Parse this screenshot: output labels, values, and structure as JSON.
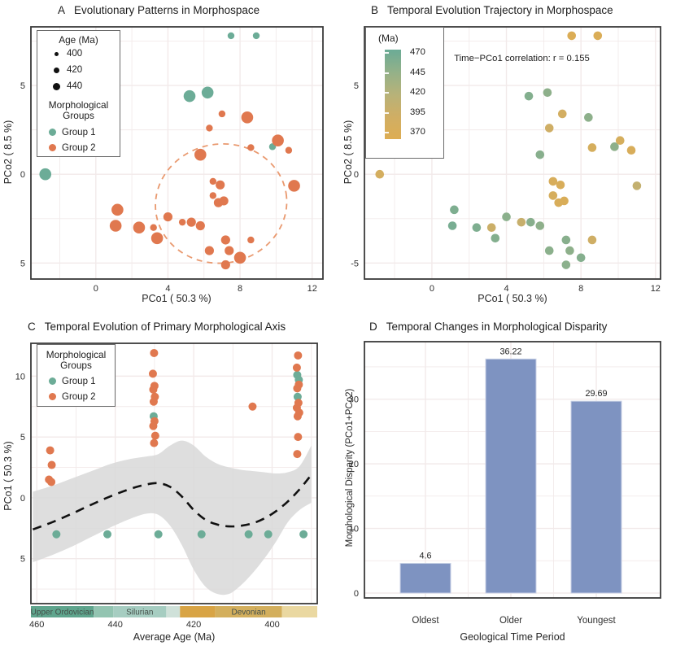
{
  "colors": {
    "group1": "#6CAC97",
    "group2": "#E0784F",
    "bar_fill": "#7E93C1",
    "bar_edge": "#C9D2E6",
    "grid": "#F2EAEA",
    "panel_border": "#3A3A3A",
    "ellipse": "#E9996F",
    "trend": "#111111",
    "band": "#D8D8D8",
    "size_dot": "#111111",
    "geo_label": "#45504A",
    "age_gradient": [
      {
        "age": 470,
        "color": "#6BAB96"
      },
      {
        "age": 445,
        "color": "#93B189"
      },
      {
        "age": 420,
        "color": "#B7B279"
      },
      {
        "age": 395,
        "color": "#D0AE64"
      },
      {
        "age": 370,
        "color": "#DDAD53"
      }
    ]
  },
  "chart_data": [
    {
      "panel_label": "A",
      "title": "Evolutionary Patterns in Morphospace",
      "type": "scatter",
      "xlabel": "PCo1 ( 50.3 %)",
      "ylabel": "PCo2 ( 8.5 %)",
      "xlim": [
        -3.6,
        12.6
      ],
      "ylim": [
        -5.9,
        8.3
      ],
      "x_ticks": [
        0,
        4,
        8,
        12
      ],
      "y_ticks": [
        {
          "v": 5,
          "t": "5"
        },
        {
          "v": 0,
          "t": "0"
        },
        {
          "v": -5,
          "t": "5"
        }
      ],
      "grid_minor_x": [
        -2,
        2,
        6,
        10
      ],
      "grid_minor_y": [
        7.5,
        2.5,
        -2.5
      ],
      "size_legend": {
        "title": "Age (Ma)",
        "entries": [
          "400",
          "420",
          "440"
        ]
      },
      "group_legend": {
        "title": "Morphological Groups",
        "entries": [
          {
            "label": "Group 1"
          },
          {
            "label": "Group 2"
          }
        ]
      },
      "ellipse": {
        "cx": 6.95,
        "cy": -1.65,
        "rx": 3.65,
        "ry": 3.35
      },
      "points": [
        {
          "x": -2.8,
          "y": 0.0,
          "g": 1,
          "s": "L",
          "age": 388
        },
        {
          "x": 7.5,
          "y": 7.8,
          "g": 1,
          "s": "S",
          "age": 374
        },
        {
          "x": 8.9,
          "y": 7.8,
          "g": 1,
          "s": "S",
          "age": 376
        },
        {
          "x": 5.2,
          "y": 4.4,
          "g": 1,
          "s": "L",
          "age": 455
        },
        {
          "x": 6.2,
          "y": 4.6,
          "g": 1,
          "s": "L",
          "age": 448
        },
        {
          "x": 9.8,
          "y": 1.55,
          "g": 1,
          "s": "S",
          "age": 448
        },
        {
          "x": 7.0,
          "y": 3.4,
          "g": 2,
          "s": "S",
          "age": 390
        },
        {
          "x": 6.3,
          "y": 2.6,
          "g": 2,
          "s": "S",
          "age": 396
        },
        {
          "x": 8.4,
          "y": 3.2,
          "g": 2,
          "s": "L",
          "age": 448
        },
        {
          "x": 5.8,
          "y": 1.1,
          "g": 2,
          "s": "L",
          "age": 452
        },
        {
          "x": 8.6,
          "y": 1.5,
          "g": 2,
          "s": "S",
          "age": 385
        },
        {
          "x": 10.1,
          "y": 1.9,
          "g": 2,
          "s": "L",
          "age": 385
        },
        {
          "x": 10.7,
          "y": 1.35,
          "g": 2,
          "s": "S",
          "age": 380
        },
        {
          "x": 11.0,
          "y": -0.65,
          "g": 2,
          "s": "L",
          "age": 408
        },
        {
          "x": 6.5,
          "y": -0.4,
          "g": 2,
          "s": "S",
          "age": 382
        },
        {
          "x": 6.9,
          "y": -0.6,
          "g": 2,
          "s": "M",
          "age": 380
        },
        {
          "x": 6.5,
          "y": -1.2,
          "g": 2,
          "s": "S",
          "age": 384
        },
        {
          "x": 6.8,
          "y": -1.6,
          "g": 2,
          "s": "M",
          "age": 380
        },
        {
          "x": 7.1,
          "y": -1.5,
          "g": 2,
          "s": "M",
          "age": 378
        },
        {
          "x": 1.2,
          "y": -2.0,
          "g": 2,
          "s": "L",
          "age": 458
        },
        {
          "x": 1.1,
          "y": -2.9,
          "g": 2,
          "s": "L",
          "age": 462
        },
        {
          "x": 2.4,
          "y": -3.0,
          "g": 2,
          "s": "L",
          "age": 458
        },
        {
          "x": 3.2,
          "y": -3.0,
          "g": 2,
          "s": "S",
          "age": 400
        },
        {
          "x": 3.4,
          "y": -3.6,
          "g": 2,
          "s": "L",
          "age": 455
        },
        {
          "x": 4.0,
          "y": -2.4,
          "g": 2,
          "s": "M",
          "age": 450
        },
        {
          "x": 4.8,
          "y": -2.7,
          "g": 2,
          "s": "S",
          "age": 404
        },
        {
          "x": 5.3,
          "y": -2.7,
          "g": 2,
          "s": "M",
          "age": 452
        },
        {
          "x": 5.8,
          "y": -2.9,
          "g": 2,
          "s": "M",
          "age": 448
        },
        {
          "x": 6.3,
          "y": -4.3,
          "g": 2,
          "s": "M",
          "age": 450
        },
        {
          "x": 7.2,
          "y": -3.7,
          "g": 2,
          "s": "M",
          "age": 452
        },
        {
          "x": 7.4,
          "y": -4.3,
          "g": 2,
          "s": "M",
          "age": 448
        },
        {
          "x": 8.0,
          "y": -4.7,
          "g": 2,
          "s": "L",
          "age": 454
        },
        {
          "x": 7.2,
          "y": -5.1,
          "g": 2,
          "s": "M",
          "age": 450
        },
        {
          "x": 8.6,
          "y": -3.7,
          "g": 2,
          "s": "S",
          "age": 396
        }
      ]
    },
    {
      "panel_label": "B",
      "title": "Temporal Evolution Trajectory in Morphospace",
      "type": "scatter",
      "xlabel": "PCo1 ( 50.3 %)",
      "ylabel": "PCo2 ( 8.5 %)",
      "xlim": [
        -3.62,
        12.27
      ],
      "ylim": [
        -5.9,
        8.3
      ],
      "x_ticks": [
        0,
        4,
        8,
        12
      ],
      "y_ticks": [
        {
          "v": 5,
          "t": "5"
        },
        {
          "v": 0,
          "t": "0"
        },
        {
          "v": -5,
          "t": "-5"
        }
      ],
      "grid_minor_x": [
        -2,
        2,
        6,
        10
      ],
      "grid_minor_y": [
        7.5,
        2.5,
        -2.5
      ],
      "annotation": "Time−PCo1 correlation: r = 0.155",
      "colorbar": {
        "title": "(Ma)",
        "ticks": [
          "470",
          "445",
          "420",
          "395",
          "370"
        ]
      },
      "points_note": "same 34 points as panel A, colored by age (Ma) per point ages in chart_data[0].points"
    },
    {
      "panel_label": "C",
      "title": "Temporal Evolution of Primary Morphological Axis",
      "type": "scatter_smooth",
      "xlabel": "Average Age (Ma)",
      "ylabel": "PCo1 ( 50.3 %)",
      "xlim": [
        461.5,
        388.5
      ],
      "ylim": [
        -8.7,
        12.7
      ],
      "x_ticks": [
        460,
        440,
        420,
        400
      ],
      "y_ticks": [
        {
          "v": 10,
          "t": "10"
        },
        {
          "v": 5,
          "t": "5"
        },
        {
          "v": 0,
          "t": "0"
        },
        {
          "v": -5,
          "t": "5"
        }
      ],
      "grid_minor_x": [
        450,
        430,
        410,
        390
      ],
      "grid_minor_y": [
        7.5,
        2.5,
        -2.5,
        -7.5
      ],
      "group_legend": {
        "title": "Morphological Groups",
        "entries": [
          {
            "label": "Group 1"
          },
          {
            "label": "Group 2"
          }
        ]
      },
      "points_group1": [
        {
          "x": 455,
          "y": -3
        },
        {
          "x": 442,
          "y": -3
        },
        {
          "x": 429,
          "y": -3
        },
        {
          "x": 418,
          "y": -3
        },
        {
          "x": 406,
          "y": -3
        },
        {
          "x": 401,
          "y": -3
        },
        {
          "x": 392,
          "y": -3
        },
        {
          "x": 430.2,
          "y": 6.7
        },
        {
          "x": 393.6,
          "y": 10.1
        },
        {
          "x": 393.2,
          "y": 9.7
        },
        {
          "x": 393.5,
          "y": 8.3
        }
      ],
      "points_group2": [
        {
          "x": 456.6,
          "y": 3.9
        },
        {
          "x": 456.2,
          "y": 2.7
        },
        {
          "x": 456.9,
          "y": 1.5
        },
        {
          "x": 456.3,
          "y": 1.3
        },
        {
          "x": 430.1,
          "y": 11.9
        },
        {
          "x": 430.4,
          "y": 10.2
        },
        {
          "x": 430.0,
          "y": 9.2
        },
        {
          "x": 430.3,
          "y": 8.9
        },
        {
          "x": 429.9,
          "y": 8.3
        },
        {
          "x": 430.2,
          "y": 7.9
        },
        {
          "x": 430.0,
          "y": 6.3
        },
        {
          "x": 430.3,
          "y": 5.9
        },
        {
          "x": 429.8,
          "y": 5.1
        },
        {
          "x": 430.1,
          "y": 4.5
        },
        {
          "x": 405,
          "y": 7.5
        },
        {
          "x": 393.4,
          "y": 11.7
        },
        {
          "x": 393.7,
          "y": 10.7
        },
        {
          "x": 393.2,
          "y": 9.3
        },
        {
          "x": 393.6,
          "y": 9.0
        },
        {
          "x": 393.3,
          "y": 7.8
        },
        {
          "x": 393.7,
          "y": 7.4
        },
        {
          "x": 393.1,
          "y": 7.0
        },
        {
          "x": 393.5,
          "y": 6.7
        },
        {
          "x": 393.4,
          "y": 5.0
        },
        {
          "x": 393.6,
          "y": 3.6
        }
      ],
      "trend": [
        [
          461,
          -2.6
        ],
        [
          456,
          -2.0
        ],
        [
          451,
          -1.3
        ],
        [
          446,
          -0.55
        ],
        [
          441,
          0.15
        ],
        [
          436,
          0.75
        ],
        [
          432,
          1.1
        ],
        [
          429,
          1.2
        ],
        [
          426,
          0.9
        ],
        [
          423,
          0.1
        ],
        [
          420,
          -1.0
        ],
        [
          417,
          -1.8
        ],
        [
          414,
          -2.2
        ],
        [
          411,
          -2.35
        ],
        [
          408,
          -2.3
        ],
        [
          405,
          -2.1
        ],
        [
          402,
          -1.7
        ],
        [
          399,
          -1.1
        ],
        [
          396,
          -0.3
        ],
        [
          393,
          0.7
        ],
        [
          390,
          1.9
        ]
      ],
      "band_upper": [
        [
          461,
          0.5
        ],
        [
          456,
          1.0
        ],
        [
          451,
          1.6
        ],
        [
          446,
          2.2
        ],
        [
          441,
          2.8
        ],
        [
          436,
          3.2
        ],
        [
          432,
          3.4
        ],
        [
          429,
          3.6
        ],
        [
          426,
          4.3
        ],
        [
          423,
          4.7
        ],
        [
          420,
          4.3
        ],
        [
          417,
          3.4
        ],
        [
          414,
          2.8
        ],
        [
          411,
          2.5
        ],
        [
          408,
          2.3
        ],
        [
          405,
          2.2
        ],
        [
          402,
          2.1
        ],
        [
          399,
          2.0
        ],
        [
          396,
          2.1
        ],
        [
          393,
          2.6
        ],
        [
          390,
          4.3
        ]
      ],
      "band_lower": [
        [
          461,
          -5.3
        ],
        [
          456,
          -4.7
        ],
        [
          451,
          -4.0
        ],
        [
          446,
          -3.2
        ],
        [
          441,
          -2.4
        ],
        [
          436,
          -1.7
        ],
        [
          432,
          -1.3
        ],
        [
          429,
          -1.4
        ],
        [
          426,
          -2.3
        ],
        [
          423,
          -3.9
        ],
        [
          420,
          -5.9
        ],
        [
          417,
          -7.3
        ],
        [
          414,
          -7.9
        ],
        [
          411,
          -7.9
        ],
        [
          408,
          -7.2
        ],
        [
          405,
          -6.2
        ],
        [
          402,
          -5.0
        ],
        [
          399,
          -3.6
        ],
        [
          396,
          -2.0
        ],
        [
          393,
          -1.0
        ],
        [
          390,
          -0.4
        ]
      ],
      "geo_periods": [
        {
          "from": 461.5,
          "to": 445.5,
          "color": "#5FA58D",
          "label": "Upper Ordovician"
        },
        {
          "from": 445.5,
          "to": 440.5,
          "color": "#93C4B1",
          "label": ""
        },
        {
          "from": 440.5,
          "to": 427.0,
          "color": "#A6CDC1",
          "label": "Silurian"
        },
        {
          "from": 427.0,
          "to": 423.5,
          "color": "#CFE1D9",
          "label": ""
        },
        {
          "from": 423.5,
          "to": 414.5,
          "color": "#D8A445",
          "label": ""
        },
        {
          "from": 414.5,
          "to": 397.5,
          "color": "#D3AF5D",
          "label": "Devonian"
        },
        {
          "from": 397.5,
          "to": 388.5,
          "color": "#EAD8A1",
          "label": ""
        }
      ]
    },
    {
      "panel_label": "D",
      "title": "Temporal Changes in Morphological Disparity",
      "type": "bar",
      "xlabel": "Geological Time Period",
      "ylabel": "Morphological Disparity (PCo1+PCo2)",
      "categories": [
        "Oldest",
        "Older",
        "Youngest"
      ],
      "values": [
        4.6,
        36.22,
        29.69
      ],
      "value_labels": [
        "4.6",
        "36.22",
        "29.69"
      ],
      "ylim": [
        0,
        38.9
      ],
      "y_ticks": [
        0,
        10,
        20,
        30
      ],
      "grid_minor_y": [
        5,
        15,
        25,
        35
      ]
    }
  ]
}
